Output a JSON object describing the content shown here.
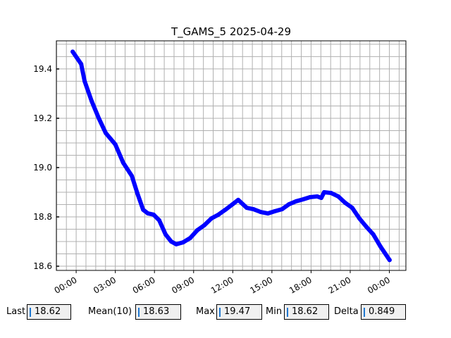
{
  "chart_data": {
    "type": "line",
    "title": "T_GAMS_5 2025-04-29",
    "xlabel": "",
    "ylabel": "",
    "x_tick_labels": [
      "00:00",
      "03:00",
      "06:00",
      "09:00",
      "12:00",
      "15:00",
      "18:00",
      "21:00",
      "00:00"
    ],
    "x_ticks": [
      "2025-04-29 00:00",
      "2025-04-29 03:00",
      "2025-04-29 06:00",
      "2025-04-29 09:00",
      "2025-04-29 12:00",
      "2025-04-29 15:00",
      "2025-04-29 18:00",
      "2025-04-29 21:00",
      "2025-04-30 00:00"
    ],
    "y_tick_labels": [
      "18.6",
      "18.8",
      "19.0",
      "19.2",
      "19.4"
    ],
    "xlim": [
      "2025-04-28 22:29",
      "2025-04-30 01:16"
    ],
    "ylim": [
      18.583,
      19.514
    ],
    "grid": true,
    "series": [
      {
        "color": "#0000ff",
        "x": [
          "2025-04-28 23:44",
          "2025-04-29 00:23",
          "2025-04-29 00:39",
          "2025-04-29 01:11",
          "2025-04-29 01:44",
          "2025-04-29 02:16",
          "2025-04-29 03:00",
          "2025-04-29 03:36",
          "2025-04-29 04:16",
          "2025-04-29 04:42",
          "2025-04-29 05:08",
          "2025-04-29 05:30",
          "2025-04-29 05:56",
          "2025-04-29 06:22",
          "2025-04-29 06:51",
          "2025-04-29 07:17",
          "2025-04-29 07:40",
          "2025-04-29 08:12",
          "2025-04-29 08:44",
          "2025-04-29 09:17",
          "2025-04-29 09:49",
          "2025-04-29 10:22",
          "2025-04-29 10:54",
          "2025-04-29 11:26",
          "2025-04-29 11:59",
          "2025-04-29 12:25",
          "2025-04-29 12:47",
          "2025-04-29 13:04",
          "2025-04-29 13:36",
          "2025-04-29 14:08",
          "2025-04-29 14:41",
          "2025-04-29 15:13",
          "2025-04-29 15:46",
          "2025-04-29 16:18",
          "2025-04-29 16:50",
          "2025-04-29 17:23",
          "2025-04-29 17:55",
          "2025-04-29 18:28",
          "2025-04-29 18:47",
          "2025-04-29 19:00",
          "2025-04-29 19:32",
          "2025-04-29 20:05",
          "2025-04-29 20:37",
          "2025-04-29 21:09",
          "2025-04-29 21:42",
          "2025-04-29 22:14",
          "2025-04-29 22:46",
          "2025-04-29 23:19",
          "2025-04-30 00:01"
        ],
        "y": [
          19.47,
          19.42,
          19.35,
          19.27,
          19.2,
          19.14,
          19.094,
          19.02,
          18.966,
          18.894,
          18.829,
          18.814,
          18.809,
          18.786,
          18.729,
          18.7,
          18.689,
          18.697,
          18.714,
          18.746,
          18.766,
          18.794,
          18.809,
          18.829,
          18.851,
          18.869,
          18.851,
          18.837,
          18.831,
          18.82,
          18.814,
          18.823,
          18.831,
          18.851,
          18.863,
          18.871,
          18.88,
          18.883,
          18.877,
          18.9,
          18.897,
          18.883,
          18.857,
          18.837,
          18.794,
          18.76,
          18.729,
          18.68,
          18.625
        ]
      }
    ]
  },
  "stats": {
    "last_label": "Last",
    "last_value": "18.62",
    "mean_label": "Mean(10)",
    "mean_value": "18.63",
    "max_label": "Max",
    "max_value": "19.47",
    "min_label": "Min",
    "min_value": "18.62",
    "delta_label": "Delta",
    "delta_value": "0.849"
  }
}
